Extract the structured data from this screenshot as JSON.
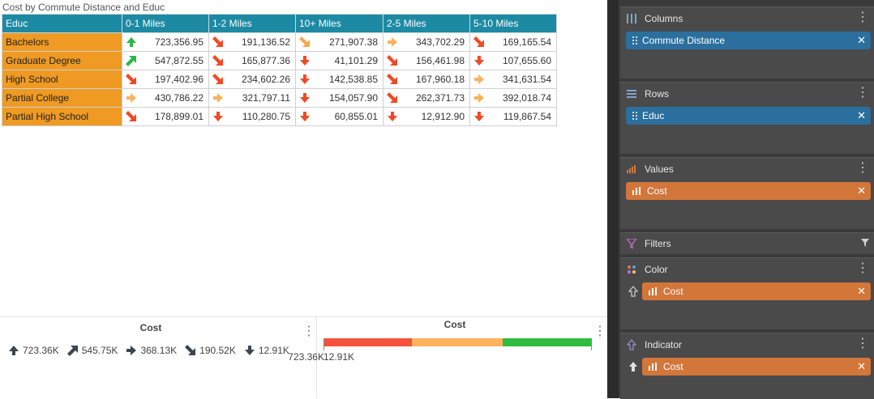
{
  "report": {
    "title": "Cost by Commute Distance and Educ",
    "corner_header": "Educ",
    "columns": [
      "0-1 Miles",
      "1-2 Miles",
      "10+ Miles",
      "2-5 Miles",
      "5-10 Miles"
    ],
    "rows": [
      {
        "label": "Bachelors",
        "cells": [
          {
            "value": "723,356.95",
            "arrow": "up"
          },
          {
            "value": "191,136.52",
            "arrow": "down-right"
          },
          {
            "value": "271,907.38",
            "arrow": "down-right-light"
          },
          {
            "value": "343,702.29",
            "arrow": "right"
          },
          {
            "value": "169,165.54",
            "arrow": "down-right"
          }
        ]
      },
      {
        "label": "Graduate Degree",
        "cells": [
          {
            "value": "547,872.55",
            "arrow": "up-right"
          },
          {
            "value": "165,877.36",
            "arrow": "down-right"
          },
          {
            "value": "41,101.29",
            "arrow": "down"
          },
          {
            "value": "156,461.98",
            "arrow": "down-right"
          },
          {
            "value": "107,655.60",
            "arrow": "down"
          }
        ]
      },
      {
        "label": "High School",
        "cells": [
          {
            "value": "197,402.96",
            "arrow": "down-right"
          },
          {
            "value": "234,602.26",
            "arrow": "down-right"
          },
          {
            "value": "142,538.85",
            "arrow": "down"
          },
          {
            "value": "167,960.18",
            "arrow": "down-right"
          },
          {
            "value": "341,631.54",
            "arrow": "right"
          }
        ]
      },
      {
        "label": "Partial College",
        "cells": [
          {
            "value": "430,786.22",
            "arrow": "right"
          },
          {
            "value": "321,797.11",
            "arrow": "right"
          },
          {
            "value": "154,057.90",
            "arrow": "down"
          },
          {
            "value": "262,371.73",
            "arrow": "down-right"
          },
          {
            "value": "392,018.74",
            "arrow": "right"
          }
        ]
      },
      {
        "label": "Partial High School",
        "cells": [
          {
            "value": "178,899.01",
            "arrow": "down-right"
          },
          {
            "value": "110,280.75",
            "arrow": "down"
          },
          {
            "value": "60,855.01",
            "arrow": "down"
          },
          {
            "value": "12,912.90",
            "arrow": "down"
          },
          {
            "value": "119,867.54",
            "arrow": "down"
          }
        ]
      }
    ]
  },
  "arrow_colors": {
    "up": "#2db84a",
    "up-right": "#2db84a",
    "right": "#f7b35a",
    "down-right-light": "#f7a94e",
    "down-right": "#f04a24",
    "down": "#f04a24"
  },
  "indicator_legend": {
    "title": "Cost",
    "items": [
      {
        "arrow": "up",
        "label": "723.36K"
      },
      {
        "arrow": "up-right",
        "label": "545.75K"
      },
      {
        "arrow": "right",
        "label": "368.13K"
      },
      {
        "arrow": "down-right",
        "label": "190.52K"
      },
      {
        "arrow": "down",
        "label": "12.91K"
      }
    ]
  },
  "color_legend": {
    "title": "Cost",
    "min": "12.91K",
    "max": "723.36K",
    "bands": [
      {
        "color": "#f4523a",
        "fraction": 0.33
      },
      {
        "color": "#ffb35c",
        "fraction": 0.34
      },
      {
        "color": "#2ebd3f",
        "fraction": 0.33
      }
    ]
  },
  "fields_panel": {
    "columns": {
      "label": "Columns",
      "pill": "Commute Distance"
    },
    "rows": {
      "label": "Rows",
      "pill": "Educ"
    },
    "values": {
      "label": "Values",
      "pill": "Cost"
    },
    "filters": {
      "label": "Filters"
    },
    "color": {
      "label": "Color",
      "pill": "Cost"
    },
    "indicator": {
      "label": "Indicator",
      "pill": "Cost"
    }
  }
}
